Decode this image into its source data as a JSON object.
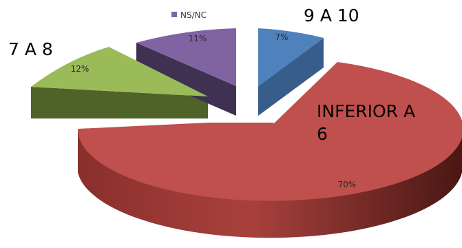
{
  "chart_data": {
    "type": "pie",
    "style": "3d-exploded",
    "title": "",
    "legend": [
      {
        "label": "NS/NC",
        "color": "#8064A2"
      }
    ],
    "slices": [
      {
        "key": "inferior",
        "label": "INFERIOR A 6",
        "label_lines": [
          "INFERIOR A",
          "6"
        ],
        "value": 70,
        "value_label": "70%",
        "color": "#C0504D"
      },
      {
        "key": "s7a8",
        "label": "7 A 8",
        "label_lines": [
          "7 A 8"
        ],
        "value": 12,
        "value_label": "12%",
        "color": "#9BBB59"
      },
      {
        "key": "nsnc",
        "label": "NS/NC",
        "label_lines": [],
        "value": 11,
        "value_label": "11%",
        "color": "#8064A2"
      },
      {
        "key": "s9a10",
        "label": "9 A 10",
        "label_lines": [
          "9 A 10"
        ],
        "value": 7,
        "value_label": "7%",
        "color": "#4F81BD"
      }
    ]
  }
}
